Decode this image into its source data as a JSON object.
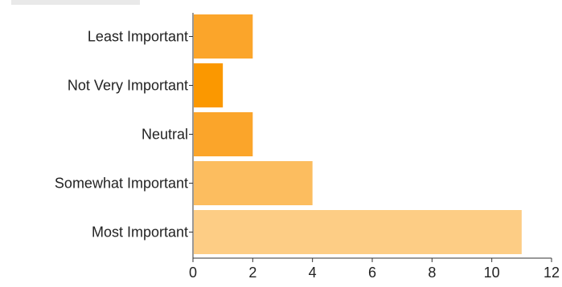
{
  "chart_data": {
    "type": "bar",
    "orientation": "horizontal",
    "title": "",
    "xlabel": "",
    "ylabel": "",
    "categories": [
      "Least Important",
      "Not Very Important",
      "Neutral",
      "Somewhat Important",
      "Most Important"
    ],
    "values": [
      2,
      1,
      2,
      4,
      11
    ],
    "xlim": [
      0,
      12
    ],
    "xticks": [
      0,
      2,
      4,
      6,
      8,
      10,
      12
    ],
    "grid": false,
    "legend": "none",
    "colors": [
      "#fba52a",
      "#fb9800",
      "#fba52a",
      "#fcbd5f",
      "#fdcd85"
    ]
  }
}
